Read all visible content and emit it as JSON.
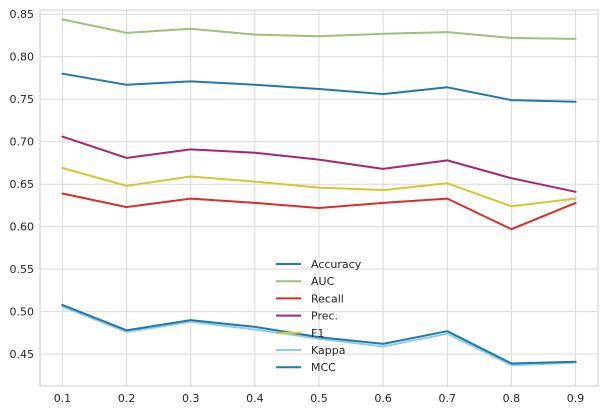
{
  "chart_data": {
    "type": "line",
    "title": "",
    "xlabel": "",
    "ylabel": "",
    "x": [
      0.1,
      0.2,
      0.3,
      0.4,
      0.5,
      0.6,
      0.7,
      0.8,
      0.9
    ],
    "x_tick_labels": [
      "0.1",
      "0.2",
      "0.3",
      "0.4",
      "0.5",
      "0.6",
      "0.7",
      "0.8",
      "0.9"
    ],
    "xlim": [
      0.065,
      0.935
    ],
    "ylim": [
      0.4125,
      0.855
    ],
    "y_ticks": [
      0.45,
      0.5,
      0.55,
      0.6,
      0.65,
      0.7,
      0.75,
      0.8,
      0.85
    ],
    "y_tick_labels": [
      "0.45",
      "0.50",
      "0.55",
      "0.60",
      "0.65",
      "0.70",
      "0.75",
      "0.80",
      "0.85"
    ],
    "grid": true,
    "legend_position": "lower-center",
    "series": [
      {
        "name": "Accuracy",
        "color": "#1f78b0",
        "values": [
          0.78,
          0.767,
          0.771,
          0.767,
          0.762,
          0.756,
          0.764,
          0.749,
          0.747
        ]
      },
      {
        "name": "AUC",
        "color": "#9bc17a",
        "values": [
          0.844,
          0.828,
          0.833,
          0.826,
          0.824,
          0.827,
          0.829,
          0.822,
          0.821
        ]
      },
      {
        "name": "Recall",
        "color": "#d62f2a",
        "values": [
          0.639,
          0.623,
          0.633,
          0.628,
          0.622,
          0.628,
          0.633,
          0.597,
          0.628
        ]
      },
      {
        "name": "Prec.",
        "color": "#a8246d",
        "values": [
          0.706,
          0.681,
          0.691,
          0.687,
          0.679,
          0.668,
          0.678,
          0.657,
          0.641
        ]
      },
      {
        "name": "F1",
        "color": "#d6c52c",
        "values": [
          0.669,
          0.648,
          0.659,
          0.653,
          0.646,
          0.643,
          0.651,
          0.624,
          0.633
        ]
      },
      {
        "name": "Kappa",
        "color": "#8fcde6",
        "values": [
          0.506,
          0.476,
          0.488,
          0.479,
          0.468,
          0.459,
          0.474,
          0.437,
          0.44
        ]
      },
      {
        "name": "MCC",
        "color": "#1f78b0",
        "values": [
          0.508,
          0.478,
          0.49,
          0.482,
          0.47,
          0.462,
          0.477,
          0.439,
          0.441
        ]
      }
    ]
  }
}
